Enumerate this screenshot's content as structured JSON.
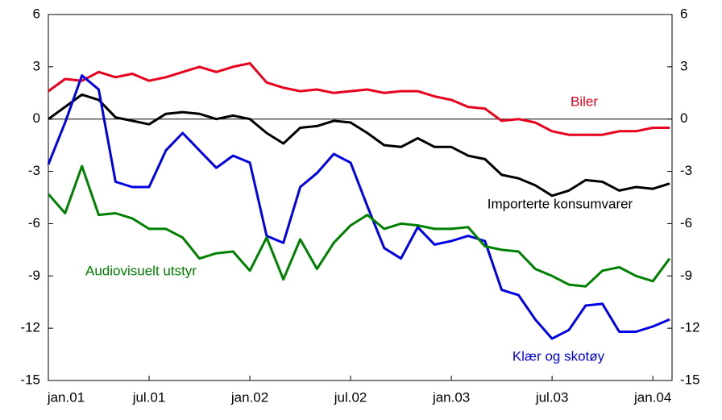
{
  "chart_data": {
    "type": "line",
    "categories": [
      "jan.01",
      null,
      null,
      null,
      null,
      null,
      "jul.01",
      null,
      null,
      null,
      null,
      null,
      "jan.02",
      null,
      null,
      null,
      null,
      null,
      "jul.02",
      null,
      null,
      null,
      null,
      null,
      "jan.03",
      null,
      null,
      null,
      null,
      null,
      "jul.03",
      null,
      null,
      null,
      null,
      null,
      "jan.04",
      null
    ],
    "ylim": [
      -15,
      6
    ],
    "yticks": [
      -15,
      -12,
      -9,
      -6,
      -3,
      0,
      3,
      6
    ],
    "y2lim": [
      -15,
      6
    ],
    "y2ticks": [
      -15,
      -12,
      -9,
      -6,
      -3,
      0,
      3,
      6
    ],
    "series": [
      {
        "name": "Biler",
        "color": "#e8001c",
        "values": [
          1.6,
          2.3,
          2.2,
          2.7,
          2.4,
          2.6,
          2.2,
          2.4,
          2.7,
          3.0,
          2.7,
          3.0,
          3.2,
          2.1,
          1.8,
          1.6,
          1.7,
          1.5,
          1.6,
          1.7,
          1.5,
          1.6,
          1.6,
          1.3,
          1.1,
          0.7,
          0.6,
          -0.1,
          0.0,
          -0.2,
          -0.7,
          -0.9,
          -0.9,
          -0.9,
          -0.7,
          -0.7,
          -0.5,
          -0.5
        ]
      },
      {
        "name": "Importerte konsumvarer",
        "color": "#000000",
        "values": [
          0.0,
          0.7,
          1.4,
          1.1,
          0.1,
          -0.1,
          -0.3,
          0.3,
          0.4,
          0.3,
          0.0,
          0.2,
          0.0,
          -0.8,
          -1.4,
          -0.5,
          -0.4,
          -0.1,
          -0.2,
          -0.8,
          -1.5,
          -1.6,
          -1.1,
          -1.6,
          -1.6,
          -2.1,
          -2.3,
          -3.2,
          -3.4,
          -3.8,
          -4.4,
          -4.1,
          -3.5,
          -3.6,
          -4.1,
          -3.9,
          -4.0,
          -3.7
        ]
      },
      {
        "name": "Klær og skotøy",
        "color": "#0000e6",
        "values": [
          -2.6,
          -0.2,
          2.5,
          1.7,
          -3.6,
          -3.9,
          -3.9,
          -1.8,
          -0.8,
          -1.8,
          -2.8,
          -2.1,
          -2.5,
          -6.7,
          -7.1,
          -3.9,
          -3.1,
          -2.0,
          -2.5,
          -5.0,
          -7.4,
          -8.0,
          -6.2,
          -7.2,
          -7.0,
          -6.7,
          -7.0,
          -9.8,
          -10.1,
          -11.5,
          -12.6,
          -12.1,
          -10.7,
          -10.6,
          -12.2,
          -12.2,
          -11.9,
          -11.5
        ]
      },
      {
        "name": "Audiovisuelt utstyr",
        "color": "#008000",
        "values": [
          -4.3,
          -5.4,
          -2.7,
          -5.5,
          -5.4,
          -5.7,
          -6.3,
          -6.3,
          -6.8,
          -8.0,
          -7.7,
          -7.6,
          -8.7,
          -6.8,
          -9.2,
          -6.9,
          -8.6,
          -7.1,
          -6.1,
          -5.5,
          -6.3,
          -6.0,
          -6.1,
          -6.3,
          -6.3,
          -6.2,
          -7.3,
          -7.5,
          -7.6,
          -8.6,
          -9.0,
          -9.5,
          -9.6,
          -8.7,
          -8.5,
          -9.0,
          -9.3,
          -8.0
        ]
      }
    ]
  }
}
